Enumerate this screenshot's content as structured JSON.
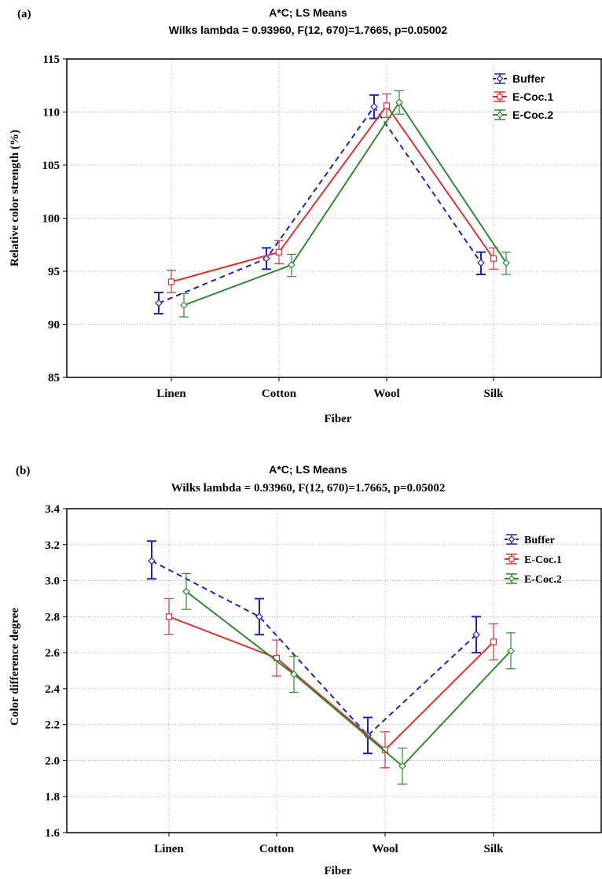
{
  "chart_data": [
    {
      "panel_label": "(a)",
      "type": "line",
      "title": "A*C; LS Means",
      "subtitle": "Wilks lambda = 0.93960, F(12, 670)=1.7665, p=0.05002",
      "xlabel": "Fiber",
      "ylabel": "Relative color strength (%)",
      "categories": [
        "Linen",
        "Cotton",
        "Wool",
        "Silk"
      ],
      "ylim": [
        85,
        115
      ],
      "yticks": [
        "85",
        "90",
        "95",
        "100",
        "105",
        "110",
        "115"
      ],
      "grid": true,
      "legend_position": "top-right",
      "series": [
        {
          "name": "Buffer",
          "color": "#1f1fc8",
          "dash": "dashed",
          "marker": "diamond",
          "values": [
            92.0,
            96.2,
            110.5,
            95.8
          ],
          "lower": [
            91.0,
            95.2,
            109.4,
            94.7
          ],
          "upper": [
            93.0,
            97.2,
            111.6,
            96.8
          ]
        },
        {
          "name": "E-Coc.1",
          "color": "#e03030",
          "dash": "solid",
          "marker": "square",
          "values": [
            94.0,
            96.8,
            110.6,
            96.2
          ],
          "lower": [
            93.0,
            95.7,
            109.5,
            95.2
          ],
          "upper": [
            95.1,
            97.9,
            111.7,
            97.2
          ]
        },
        {
          "name": "E-Coc.2",
          "color": "#2e8b2e",
          "dash": "solid",
          "marker": "diamond",
          "values": [
            91.8,
            95.6,
            110.9,
            95.8
          ],
          "lower": [
            90.7,
            94.5,
            109.8,
            94.7
          ],
          "upper": [
            92.9,
            96.6,
            112.0,
            96.8
          ]
        }
      ]
    },
    {
      "panel_label": "(b)",
      "type": "line",
      "title": "A*C; LS Means",
      "subtitle": "Wilks lambda = 0.93960, F(12, 670)=1.7665, p=0.05002",
      "xlabel": "Fiber",
      "ylabel": "Color difference degree",
      "categories": [
        "Linen",
        "Cotton",
        "Wool",
        "Silk"
      ],
      "ylim": [
        1.6,
        3.4
      ],
      "yticks": [
        "1.6",
        "1.8",
        "2.0",
        "2.2",
        "2.4",
        "2.6",
        "2.8",
        "3.0",
        "3.2",
        "3.4"
      ],
      "grid": true,
      "legend_position": "top-right",
      "series": [
        {
          "name": "Buffer",
          "color": "#1f1fc8",
          "dash": "dashed",
          "marker": "diamond",
          "values": [
            3.11,
            2.8,
            2.14,
            2.7
          ],
          "lower": [
            3.01,
            2.7,
            2.04,
            2.6
          ],
          "upper": [
            3.22,
            2.9,
            2.24,
            2.8
          ]
        },
        {
          "name": "E-Coc.1",
          "color": "#e03030",
          "dash": "solid",
          "marker": "square",
          "values": [
            2.8,
            2.57,
            2.06,
            2.66
          ],
          "lower": [
            2.7,
            2.47,
            1.96,
            2.56
          ],
          "upper": [
            2.9,
            2.67,
            2.16,
            2.76
          ]
        },
        {
          "name": "E-Coc.2",
          "color": "#2e8b2e",
          "dash": "solid",
          "marker": "diamond",
          "values": [
            2.94,
            2.48,
            1.97,
            2.61
          ],
          "lower": [
            2.84,
            2.38,
            1.87,
            2.51
          ],
          "upper": [
            3.04,
            2.58,
            2.07,
            2.71
          ]
        }
      ]
    }
  ]
}
